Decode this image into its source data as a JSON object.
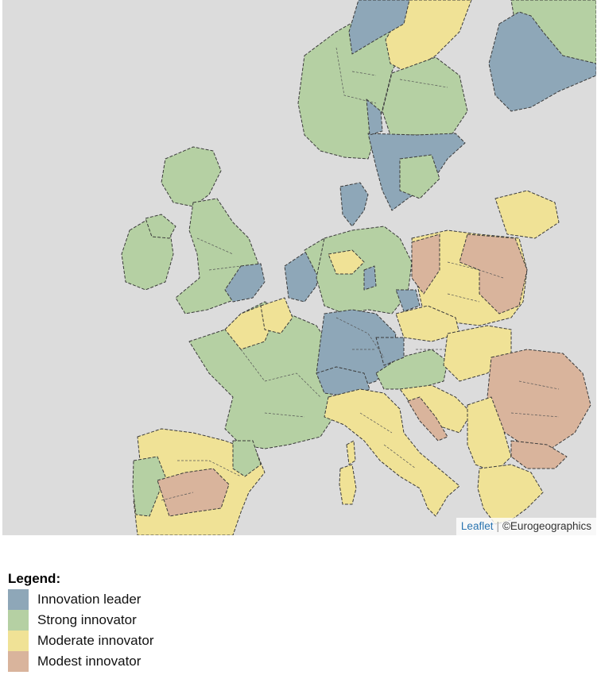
{
  "map": {
    "attribution": {
      "leaflet": "Leaflet",
      "copyright": "©Eurogeographics"
    },
    "colors": {
      "innovation_leader": "#8ea7b8",
      "strong_innovator": "#b5d0a3",
      "moderate_innovator": "#f0e296",
      "modest_innovator": "#d9b49c",
      "sea": "#dcdcdc",
      "border": "#3a3a3a"
    }
  },
  "legend": {
    "title": "Legend:",
    "items": [
      {
        "label": "Innovation leader",
        "color": "#8ea7b8"
      },
      {
        "label": "Strong innovator",
        "color": "#b5d0a3"
      },
      {
        "label": "Moderate innovator",
        "color": "#f0e296"
      },
      {
        "label": "Modest innovator",
        "color": "#d9b49c"
      }
    ]
  }
}
